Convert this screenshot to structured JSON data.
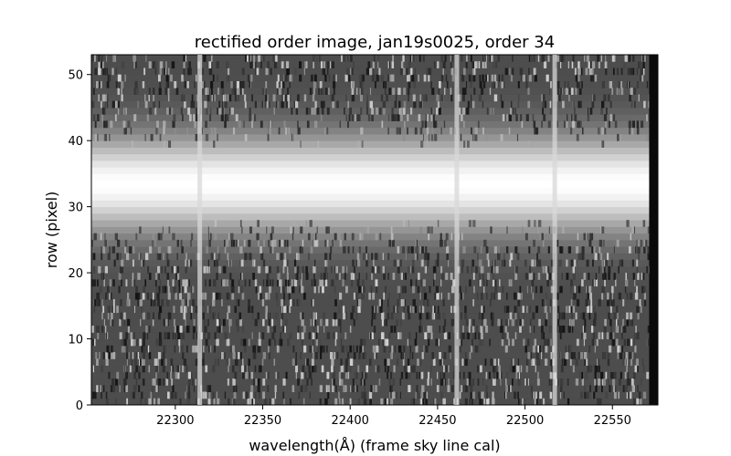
{
  "chart_data": {
    "type": "heatmap",
    "title": "rectified order image, jan19s0025, order 34",
    "xlabel": "wavelength($\\AA$) (frame sky line cal)",
    "xlabel_display": "wavelength(Å) (frame sky line cal)",
    "ylabel": "row (pixel)",
    "xlim": [
      22252,
      22576
    ],
    "ylim": [
      0,
      53
    ],
    "x_ticks": [
      22300,
      22350,
      22400,
      22450,
      22500,
      22550
    ],
    "y_ticks": [
      0,
      10,
      20,
      30,
      40,
      50
    ],
    "colormap": "gray",
    "grid": false,
    "trace_center_row": 33.5,
    "trace_rows": [
      24,
      44
    ],
    "sky_line_wavelengths": [
      22314,
      22461,
      22517
    ],
    "dark_edge_wavelength_start": 22571
  }
}
